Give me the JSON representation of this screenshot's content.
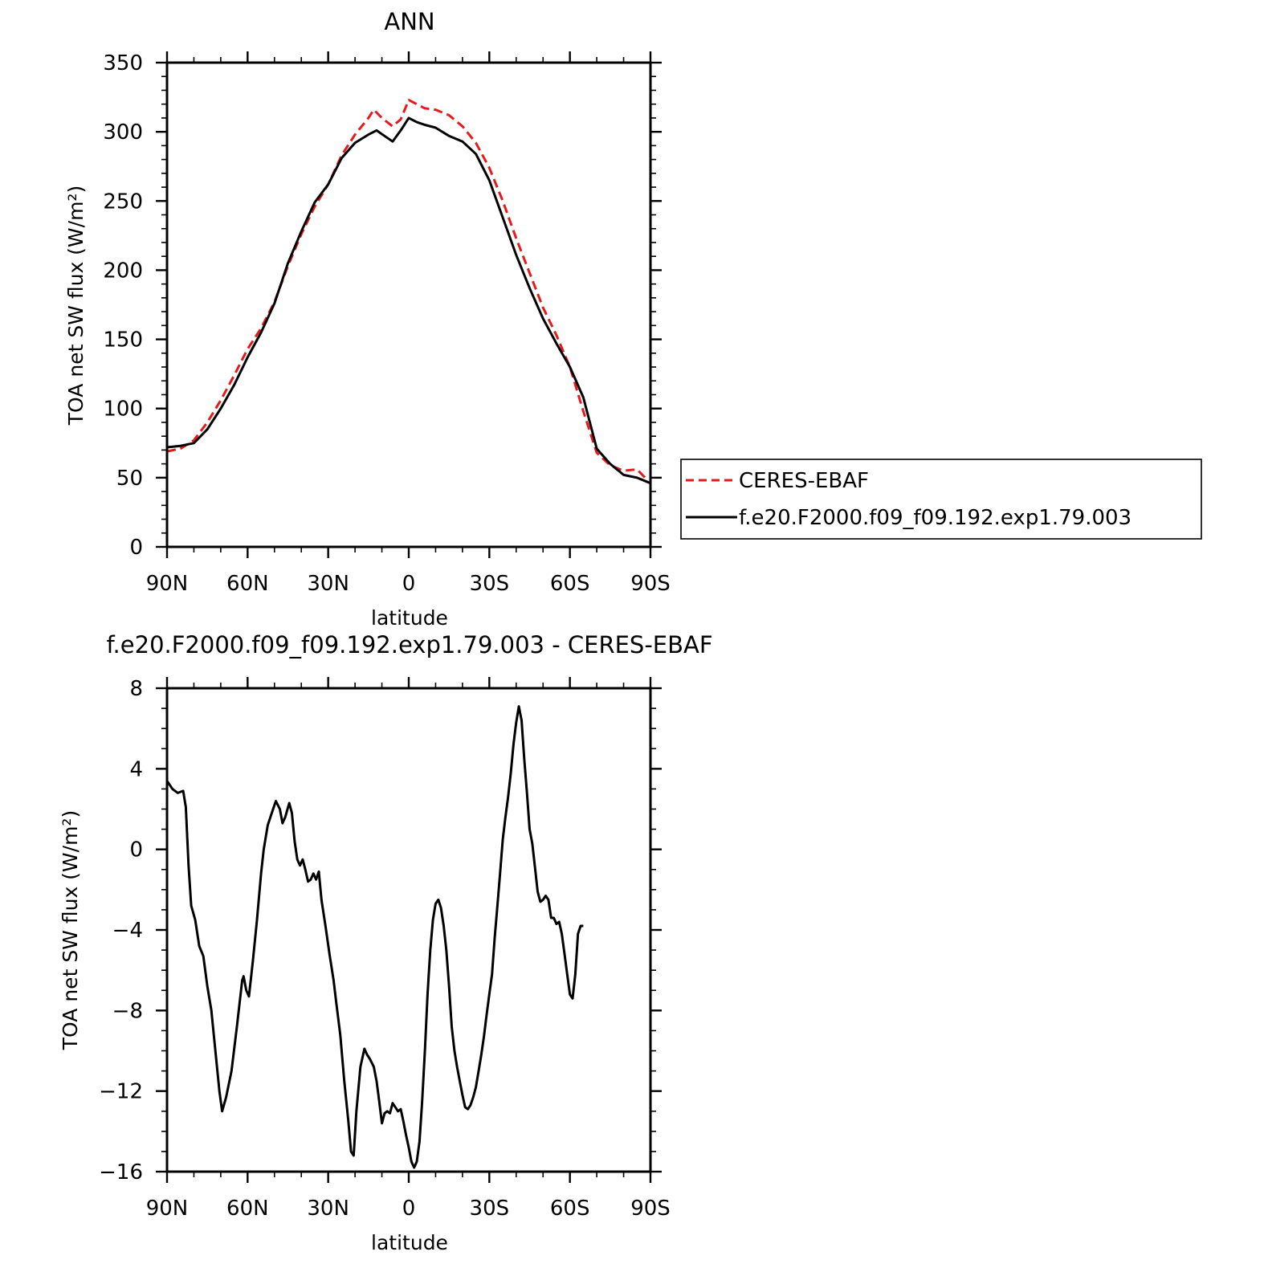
{
  "chart_data": [
    {
      "type": "line",
      "title": "ANN",
      "xlabel": "latitude",
      "ylabel": "TOA net SW flux (W/m²)",
      "xlim": [
        90,
        -90
      ],
      "ylim": [
        0,
        350
      ],
      "xticks": [
        90,
        60,
        30,
        0,
        -30,
        -60,
        -90
      ],
      "xtick_labels": [
        "90N",
        "60N",
        "30N",
        "0",
        "30S",
        "60S",
        "90S"
      ],
      "yticks": [
        0,
        50,
        100,
        150,
        200,
        250,
        300,
        350
      ],
      "ytick_labels": [
        "0",
        "50",
        "100",
        "150",
        "200",
        "250",
        "300",
        "350"
      ],
      "legend_position": "right",
      "series": [
        {
          "name": "CERES-EBAF",
          "color": "#e8191b",
          "dash": "dashed",
          "points": [
            [
              90,
              69
            ],
            [
              85,
              71
            ],
            [
              80,
              77
            ],
            [
              75,
              90
            ],
            [
              70,
              106
            ],
            [
              65,
              124
            ],
            [
              60,
              143
            ],
            [
              55,
              158
            ],
            [
              50,
              177
            ],
            [
              45,
              203
            ],
            [
              40,
              226
            ],
            [
              35,
              246
            ],
            [
              30,
              262
            ],
            [
              25,
              283
            ],
            [
              20,
              298
            ],
            [
              15,
              310
            ],
            [
              13,
              316
            ],
            [
              10,
              310
            ],
            [
              6,
              304
            ],
            [
              3,
              309
            ],
            [
              0,
              323
            ],
            [
              -3,
              320
            ],
            [
              -6,
              317
            ],
            [
              -10,
              316
            ],
            [
              -15,
              312
            ],
            [
              -20,
              304
            ],
            [
              -25,
              292
            ],
            [
              -30,
              274
            ],
            [
              -35,
              250
            ],
            [
              -40,
              223
            ],
            [
              -45,
              198
            ],
            [
              -50,
              173
            ],
            [
              -55,
              153
            ],
            [
              -60,
              130
            ],
            [
              -65,
              98
            ],
            [
              -70,
              68
            ],
            [
              -75,
              59
            ],
            [
              -80,
              55
            ],
            [
              -85,
              56
            ],
            [
              -88,
              50
            ],
            [
              -90,
              49
            ]
          ]
        },
        {
          "name": "f.e20.F2000.f09_f09.192.exp1.79.003",
          "color": "#000000",
          "dash": "solid",
          "points": [
            [
              90,
              72
            ],
            [
              85,
              73
            ],
            [
              80,
              75
            ],
            [
              75,
              85
            ],
            [
              70,
              100
            ],
            [
              65,
              117
            ],
            [
              60,
              137
            ],
            [
              55,
              155
            ],
            [
              50,
              176
            ],
            [
              45,
              205
            ],
            [
              40,
              228
            ],
            [
              35,
              249
            ],
            [
              30,
              262
            ],
            [
              25,
              281
            ],
            [
              20,
              292
            ],
            [
              15,
              298
            ],
            [
              12,
              301
            ],
            [
              9,
              297
            ],
            [
              6,
              293
            ],
            [
              3,
              301
            ],
            [
              0,
              310
            ],
            [
              -3,
              307
            ],
            [
              -6,
              305
            ],
            [
              -10,
              303
            ],
            [
              -15,
              297
            ],
            [
              -20,
              293
            ],
            [
              -25,
              284
            ],
            [
              -30,
              265
            ],
            [
              -35,
              238
            ],
            [
              -40,
              211
            ],
            [
              -45,
              187
            ],
            [
              -50,
              165
            ],
            [
              -55,
              147
            ],
            [
              -60,
              130
            ],
            [
              -65,
              108
            ],
            [
              -70,
              71
            ],
            [
              -75,
              60
            ],
            [
              -80,
              52
            ],
            [
              -85,
              50
            ],
            [
              -90,
              46
            ]
          ]
        }
      ]
    },
    {
      "type": "line",
      "title": "f.e20.F2000.f09_f09.192.exp1.79.003 - CERES-EBAF",
      "xlabel": "latitude",
      "ylabel": "TOA net SW flux (W/m²)",
      "xlim": [
        90,
        -90
      ],
      "ylim": [
        -16,
        8
      ],
      "xticks": [
        90,
        60,
        30,
        0,
        -30,
        -60,
        -90
      ],
      "xtick_labels": [
        "90N",
        "60N",
        "30N",
        "0",
        "30S",
        "60S",
        "90S"
      ],
      "yticks": [
        -16,
        -12,
        -8,
        -4,
        0,
        4,
        8
      ],
      "ytick_labels": [
        "−16",
        "−12",
        "−8",
        "−4",
        "0",
        "4",
        "8"
      ],
      "series": [
        {
          "color": "#000000",
          "dash": "solid",
          "points": [
            [
              90,
              3.4
            ],
            [
              88,
              3.0
            ],
            [
              86,
              2.8
            ],
            [
              84,
              2.9
            ],
            [
              83,
              2.1
            ],
            [
              82,
              -0.8
            ],
            [
              81,
              -2.8
            ],
            [
              79.5,
              -3.5
            ],
            [
              78,
              -4.8
            ],
            [
              76.5,
              -5.3
            ],
            [
              75,
              -6.8
            ],
            [
              73.5,
              -8.0
            ],
            [
              72,
              -10.0
            ],
            [
              70.5,
              -12.0
            ],
            [
              69.5,
              -13.0
            ],
            [
              68,
              -12.3
            ],
            [
              66,
              -11.0
            ],
            [
              64,
              -8.8
            ],
            [
              62,
              -6.5
            ],
            [
              61.5,
              -6.3
            ],
            [
              60.5,
              -7.0
            ],
            [
              59.5,
              -7.3
            ],
            [
              58,
              -5.5
            ],
            [
              56.5,
              -3.5
            ],
            [
              55,
              -1.2
            ],
            [
              54,
              0.0
            ],
            [
              52.5,
              1.2
            ],
            [
              51,
              1.8
            ],
            [
              49.5,
              2.4
            ],
            [
              48,
              2.0
            ],
            [
              47,
              1.3
            ],
            [
              46,
              1.6
            ],
            [
              44.5,
              2.3
            ],
            [
              43.5,
              1.8
            ],
            [
              42.5,
              0.4
            ],
            [
              41.5,
              -0.5
            ],
            [
              40.5,
              -0.8
            ],
            [
              39.5,
              -0.5
            ],
            [
              38.5,
              -1.0
            ],
            [
              37.5,
              -1.6
            ],
            [
              36.5,
              -1.5
            ],
            [
              35.5,
              -1.2
            ],
            [
              34.5,
              -1.5
            ],
            [
              33.5,
              -1.1
            ],
            [
              32.5,
              -2.5
            ],
            [
              31,
              -3.8
            ],
            [
              29.5,
              -5.2
            ],
            [
              28,
              -6.5
            ],
            [
              27,
              -7.6
            ],
            [
              25.5,
              -9.2
            ],
            [
              24,
              -11.5
            ],
            [
              22.5,
              -13.5
            ],
            [
              21.5,
              -15.0
            ],
            [
              20.5,
              -15.2
            ],
            [
              19.5,
              -13.0
            ],
            [
              18,
              -10.8
            ],
            [
              16.5,
              -9.9
            ],
            [
              15.5,
              -10.2
            ],
            [
              14.5,
              -10.4
            ],
            [
              13,
              -10.8
            ],
            [
              12,
              -11.5
            ],
            [
              11,
              -12.5
            ],
            [
              10,
              -13.6
            ],
            [
              9,
              -13.1
            ],
            [
              8,
              -13.0
            ],
            [
              7,
              -13.1
            ],
            [
              6,
              -12.6
            ],
            [
              5,
              -12.8
            ],
            [
              4,
              -13.0
            ],
            [
              3,
              -12.9
            ],
            [
              2,
              -13.5
            ],
            [
              1,
              -14.2
            ],
            [
              0,
              -14.8
            ],
            [
              -1,
              -15.5
            ],
            [
              -2,
              -15.8
            ],
            [
              -3,
              -15.5
            ],
            [
              -4,
              -14.5
            ],
            [
              -5,
              -12.5
            ],
            [
              -6,
              -10.0
            ],
            [
              -7,
              -7.2
            ],
            [
              -8,
              -5.0
            ],
            [
              -9,
              -3.5
            ],
            [
              -10,
              -2.7
            ],
            [
              -11,
              -2.5
            ],
            [
              -12,
              -2.9
            ],
            [
              -13,
              -3.8
            ],
            [
              -14,
              -5.0
            ],
            [
              -15,
              -6.8
            ],
            [
              -16,
              -8.8
            ],
            [
              -17,
              -10.0
            ],
            [
              -18,
              -10.8
            ],
            [
              -19,
              -11.5
            ],
            [
              -20,
              -12.2
            ],
            [
              -21,
              -12.8
            ],
            [
              -22,
              -12.9
            ],
            [
              -23,
              -12.7
            ],
            [
              -24,
              -12.3
            ],
            [
              -25,
              -11.8
            ],
            [
              -26,
              -11.0
            ],
            [
              -27,
              -10.2
            ],
            [
              -28,
              -9.3
            ],
            [
              -29,
              -8.2
            ],
            [
              -30,
              -7.2
            ],
            [
              -31,
              -6.2
            ],
            [
              -32,
              -4.4
            ],
            [
              -33,
              -2.8
            ],
            [
              -34,
              -1.2
            ],
            [
              -35,
              0.5
            ],
            [
              -36,
              1.6
            ],
            [
              -37,
              2.6
            ],
            [
              -38,
              3.8
            ],
            [
              -39,
              5.2
            ],
            [
              -40,
              6.3
            ],
            [
              -41,
              7.1
            ],
            [
              -42,
              6.4
            ],
            [
              -43,
              4.5
            ],
            [
              -44,
              2.8
            ],
            [
              -45,
              1.0
            ],
            [
              -46,
              0.3
            ],
            [
              -47,
              -0.9
            ],
            [
              -48,
              -2.1
            ],
            [
              -49,
              -2.6
            ],
            [
              -50,
              -2.5
            ],
            [
              -51,
              -2.3
            ],
            [
              -52,
              -2.5
            ],
            [
              -53,
              -3.4
            ],
            [
              -54,
              -3.4
            ],
            [
              -55,
              -3.7
            ],
            [
              -56,
              -3.6
            ],
            [
              -57,
              -4.2
            ],
            [
              -58,
              -5.2
            ],
            [
              -59,
              -6.2
            ],
            [
              -60,
              -7.2
            ],
            [
              -61,
              -7.4
            ],
            [
              -62,
              -6.2
            ],
            [
              -63,
              -4.2
            ],
            [
              -64,
              -3.8
            ],
            [
              -65,
              -3.8
            ]
          ]
        }
      ]
    }
  ]
}
